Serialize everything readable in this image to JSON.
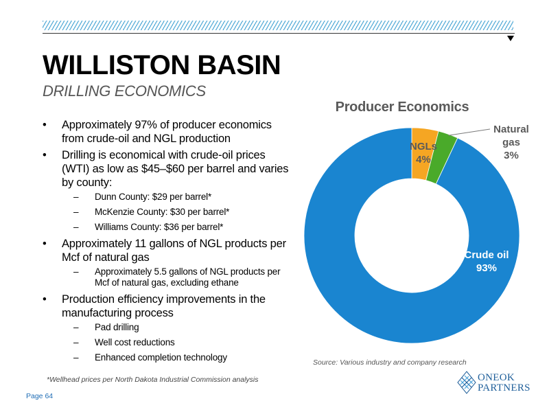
{
  "header": {
    "title": "WILLISTON BASIN",
    "subtitle": "DRILLING ECONOMICS"
  },
  "bullets": {
    "b1": "Approximately 97% of producer economics from crude-oil and NGL production",
    "b2": "Drilling is economical with crude-oil prices (WTI) as low as $45–$60 per barrel and varies by county:",
    "b2_subs": [
      "Dunn County: $29 per barrel*",
      "McKenzie County: $30 per barrel*",
      "Williams County: $36 per barrel*"
    ],
    "b3": "Approximately 11 gallons of NGL products per Mcf of natural gas",
    "b3_subs": [
      "Approximately 5.5 gallons of NGL products per Mcf of natural gas, excluding ethane"
    ],
    "b4": "Production efficiency improvements in the manufacturing process",
    "b4_subs": [
      "Pad drilling",
      "Well cost reductions",
      "Enhanced completion technology"
    ]
  },
  "footnote": "*Wellhead prices per North Dakota Industrial Commission analysis",
  "page_number": "Page 64",
  "source": "Source: Various industry and company research",
  "logo": {
    "line1": "ONEOK",
    "line2": "PARTNERS",
    "icon": "oneok-diamond-logo"
  },
  "chart_data": {
    "type": "pie",
    "title": "Producer Economics",
    "categories": [
      "NGLs",
      "Natural gas",
      "Crude oil"
    ],
    "values": [
      4,
      3,
      93
    ],
    "labels": [
      "4%",
      "3%",
      "93%"
    ],
    "colors": [
      "#f5a623",
      "#4aaa2a",
      "#1a85d0"
    ],
    "donut": true
  },
  "colors": {
    "brand_blue": "#1f5f9a",
    "hatch": "#5aaed8",
    "page_number": "#1f6db5"
  }
}
